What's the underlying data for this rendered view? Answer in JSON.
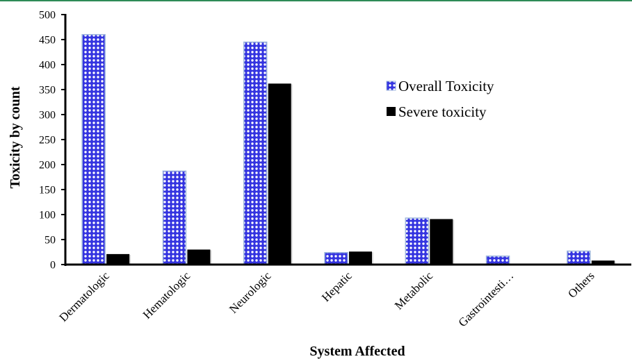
{
  "colors": {
    "overall_fill": "#3434e0",
    "overall_dot": "#ffffff",
    "overall_border": "#9fb7dd",
    "severe_fill": "#000000",
    "top_rule": "#2e8b57"
  },
  "chart_data": {
    "type": "bar",
    "title": "",
    "xlabel": "System Affected",
    "ylabel": "Toxicity by count",
    "ylim": [
      0,
      500
    ],
    "yticks": [
      0,
      50,
      100,
      150,
      200,
      250,
      300,
      350,
      400,
      450,
      500
    ],
    "grid": false,
    "legend_position": "right",
    "categories": [
      "Dermatologic",
      "Hematologic",
      "Neurologic",
      "Hepatic",
      "Metabolic",
      "Gastrointesti…",
      "Others"
    ],
    "series": [
      {
        "name": "Overall Toxicity",
        "pattern": "dotted-blue",
        "values": [
          460,
          187,
          445,
          24,
          93,
          17,
          27
        ]
      },
      {
        "name": "Severe toxicity",
        "pattern": "solid-black",
        "values": [
          21,
          30,
          362,
          26,
          91,
          0,
          8
        ]
      }
    ]
  }
}
